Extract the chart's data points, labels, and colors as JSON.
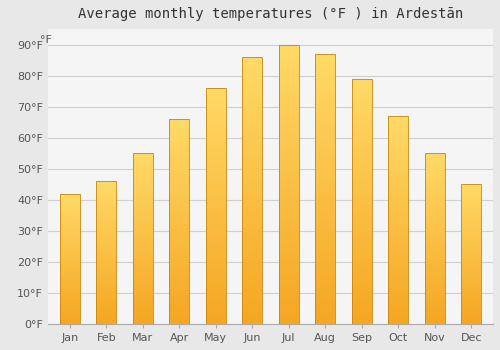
{
  "title": "Average monthly temperatures (°F ) in Ardestān",
  "months": [
    "Jan",
    "Feb",
    "Mar",
    "Apr",
    "May",
    "Jun",
    "Jul",
    "Aug",
    "Sep",
    "Oct",
    "Nov",
    "Dec"
  ],
  "values": [
    42,
    46,
    55,
    66,
    76,
    86,
    90,
    87,
    79,
    67,
    55,
    45
  ],
  "bar_color_bottom": "#F5A623",
  "bar_color_top": "#FFD966",
  "bar_edge_color": "#C8860A",
  "ylim": [
    0,
    95
  ],
  "yticks": [
    0,
    10,
    20,
    30,
    40,
    50,
    60,
    70,
    80,
    90
  ],
  "ytick_labels": [
    "0°F",
    "10°F",
    "20°F",
    "30°F",
    "40°F",
    "50°F",
    "60°F",
    "70°F",
    "80°F",
    "90°F"
  ],
  "degree_label": "°F",
  "background_color": "#e8e8e8",
  "plot_bg_color": "#f5f5f5",
  "grid_color": "#d0d0d0",
  "title_fontsize": 10,
  "tick_fontsize": 8,
  "bar_width": 0.55
}
